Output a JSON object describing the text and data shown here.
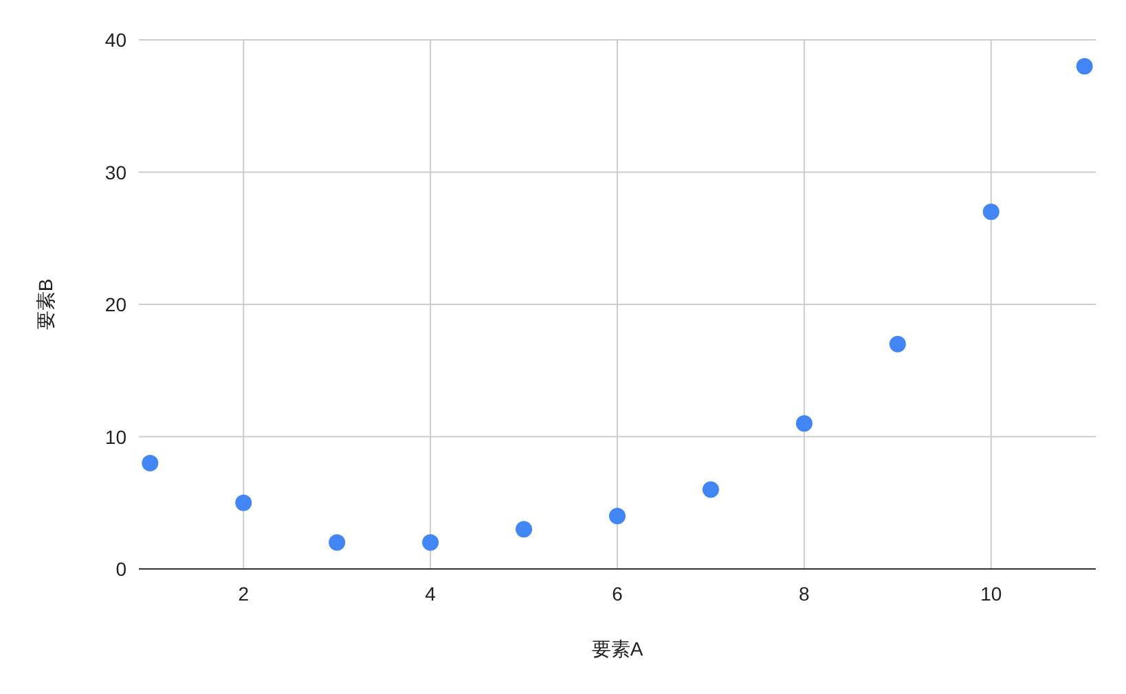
{
  "chart_data": {
    "type": "scatter",
    "xlabel": "要素A",
    "ylabel": "要素B",
    "x": [
      1,
      2,
      3,
      4,
      5,
      6,
      7,
      8,
      9,
      10,
      11
    ],
    "series": [
      {
        "color": "#4285f4",
        "values": [
          8,
          5,
          2,
          2,
          3,
          4,
          6,
          11,
          17,
          27,
          38
        ]
      }
    ],
    "xlim": [
      0.88,
      11.12
    ],
    "ylim": [
      0,
      40
    ],
    "xticks": [
      2,
      4,
      6,
      8,
      10
    ],
    "yticks": [
      0,
      10,
      20,
      30,
      40
    ],
    "grid": true,
    "marker": "circle"
  }
}
